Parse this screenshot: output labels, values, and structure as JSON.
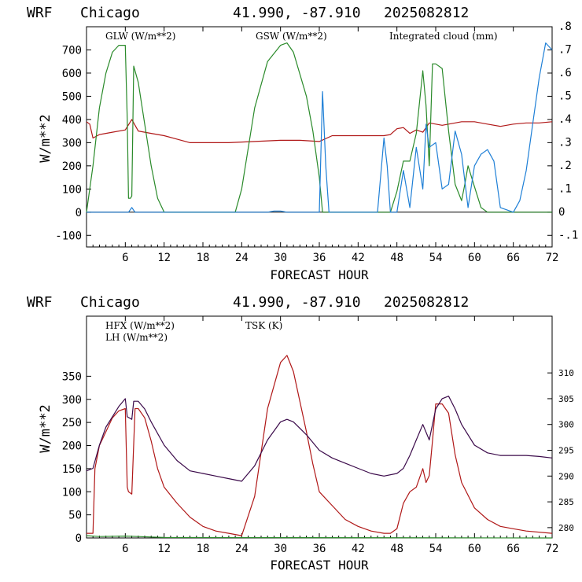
{
  "charts": [
    {
      "header": {
        "model": "WRF",
        "station": "Chicago",
        "coords": "41.990, -87.910",
        "run": "2025082812"
      },
      "xlabel": "FORECAST HOUR",
      "ylabel": "W/m**2",
      "legend": [
        {
          "label": "GLW (W/m**2)",
          "color": "#b01818"
        },
        {
          "label": "GSW (W/m**2)",
          "color": "#2a8a2a"
        },
        {
          "label": "Integrated cloud (mm)",
          "color": "#1e7fd6"
        }
      ]
    },
    {
      "header": {
        "model": "WRF",
        "station": "Chicago",
        "coords": "41.990, -87.910",
        "run": "2025082812"
      },
      "xlabel": "FORECAST HOUR",
      "ylabel": "W/m**2",
      "legend": [
        {
          "label": "HFX (W/m**2)",
          "color": "#b01818"
        },
        {
          "label": "LH  (W/m**2)",
          "color": "#2a8a2a"
        },
        {
          "label": "TSK (K)",
          "color": "#3b0a4a"
        }
      ]
    }
  ],
  "chart_data": [
    {
      "type": "line",
      "xlim": [
        0,
        72
      ],
      "xticks": [
        6,
        12,
        18,
        24,
        30,
        36,
        42,
        48,
        54,
        60,
        66,
        72
      ],
      "ylim": [
        -150,
        800
      ],
      "yticks": [
        -100,
        0,
        100,
        200,
        300,
        400,
        500,
        600,
        700
      ],
      "y2lim": [
        -0.15,
        0.8
      ],
      "y2ticks": [
        -0.1,
        0,
        0.1,
        0.2,
        0.3,
        0.4,
        0.5,
        0.6,
        0.7,
        0.8
      ],
      "y2ticklabels": [
        "-.1",
        "0",
        ".1",
        ".2",
        ".3",
        ".4",
        ".5",
        ".6",
        ".7",
        ".8"
      ],
      "series": [
        {
          "name": "GLW (W/m**2)",
          "axis": "left",
          "color": "#b01818",
          "x": [
            0,
            0.5,
            1,
            2,
            4,
            6,
            7,
            8,
            10,
            12,
            14,
            16,
            18,
            22,
            26,
            30,
            33,
            36,
            38,
            40,
            42,
            44,
            46,
            47,
            48,
            49,
            50,
            51,
            52,
            53,
            54,
            55,
            56,
            57,
            58,
            60,
            62,
            64,
            66,
            68,
            70,
            72
          ],
          "y": [
            390,
            380,
            320,
            335,
            345,
            355,
            400,
            350,
            340,
            330,
            315,
            300,
            300,
            300,
            305,
            310,
            310,
            305,
            330,
            330,
            330,
            330,
            330,
            335,
            360,
            365,
            340,
            355,
            345,
            385,
            380,
            375,
            380,
            385,
            390,
            390,
            380,
            370,
            380,
            385,
            385,
            390
          ]
        },
        {
          "name": "GSW (W/m**2)",
          "axis": "left",
          "color": "#2a8a2a",
          "x": [
            0,
            1,
            2,
            3,
            4,
            5,
            6,
            6.3,
            6.5,
            6.8,
            7,
            7.3,
            8,
            9,
            10,
            11,
            12,
            12.5,
            23,
            24,
            26,
            28,
            30,
            31,
            32,
            34,
            35,
            36,
            36.5,
            37,
            47,
            48,
            49,
            50,
            51,
            52,
            52.5,
            53,
            53.5,
            54,
            55,
            56,
            57,
            58,
            58.5,
            59,
            60,
            61,
            62,
            72
          ],
          "y": [
            0,
            200,
            450,
            600,
            690,
            720,
            720,
            400,
            60,
            60,
            70,
            630,
            560,
            380,
            200,
            60,
            0,
            0,
            0,
            100,
            450,
            650,
            720,
            730,
            690,
            500,
            350,
            150,
            0,
            0,
            0,
            90,
            220,
            220,
            340,
            610,
            460,
            200,
            640,
            640,
            620,
            350,
            120,
            50,
            120,
            200,
            110,
            20,
            0,
            0
          ]
        },
        {
          "name": "Integrated cloud (mm)",
          "axis": "right",
          "color": "#1e7fd6",
          "x": [
            0,
            6.5,
            7,
            7.5,
            28,
            29,
            30,
            31,
            36,
            36.5,
            37,
            37.5,
            45,
            46,
            46.5,
            47,
            48,
            49,
            50,
            51,
            52,
            52.5,
            53,
            54,
            55,
            56,
            57,
            58,
            59,
            60,
            61,
            62,
            63,
            64,
            66,
            67,
            68,
            69,
            70,
            71,
            72
          ],
          "y": [
            0,
            0,
            0.02,
            0,
            0,
            0.005,
            0.005,
            0,
            0,
            0.52,
            0.2,
            0,
            0,
            0.32,
            0.2,
            0,
            0,
            0.18,
            0.02,
            0.28,
            0.1,
            0.38,
            0.28,
            0.3,
            0.1,
            0.12,
            0.35,
            0.25,
            0.02,
            0.2,
            0.25,
            0.27,
            0.22,
            0.02,
            0,
            0.05,
            0.18,
            0.38,
            0.58,
            0.73,
            0.7
          ]
        }
      ]
    },
    {
      "type": "line",
      "xlim": [
        0,
        72
      ],
      "xticks": [
        6,
        12,
        18,
        24,
        30,
        36,
        42,
        48,
        54,
        60,
        66,
        72
      ],
      "ylim": [
        0,
        480
      ],
      "yticks": [
        0,
        50,
        100,
        150,
        200,
        250,
        300,
        350
      ],
      "y2lim": [
        278,
        321
      ],
      "y2ticks": [
        280,
        285,
        290,
        295,
        300,
        305,
        310
      ],
      "series": [
        {
          "name": "HFX (W/m**2)",
          "axis": "left",
          "color": "#b01818",
          "x": [
            0,
            1,
            1.3,
            2,
            3,
            4,
            5,
            6,
            6.3,
            6.5,
            7,
            7.5,
            8,
            9,
            10,
            11,
            12,
            14,
            16,
            18,
            20,
            22,
            24,
            26,
            28,
            30,
            31,
            32,
            34,
            35,
            36,
            38,
            40,
            42,
            44,
            46,
            47,
            48,
            49,
            50,
            51,
            52,
            52.5,
            53,
            53.5,
            54,
            55,
            56,
            57,
            58,
            60,
            62,
            64,
            66,
            68,
            72
          ],
          "y": [
            10,
            10,
            150,
            200,
            230,
            260,
            275,
            280,
            110,
            100,
            95,
            280,
            280,
            260,
            210,
            150,
            110,
            75,
            45,
            25,
            15,
            10,
            5,
            90,
            280,
            380,
            395,
            360,
            230,
            160,
            100,
            70,
            40,
            25,
            15,
            10,
            10,
            20,
            75,
            100,
            110,
            150,
            120,
            135,
            210,
            290,
            290,
            270,
            180,
            120,
            65,
            40,
            25,
            20,
            15,
            10
          ]
        },
        {
          "name": "LH  (W/m**2)",
          "axis": "left",
          "color": "#2a8a2a",
          "x": [
            0,
            2,
            6,
            8,
            12,
            72
          ],
          "y": [
            5,
            3,
            4,
            3,
            1,
            0
          ]
        },
        {
          "name": "TSK (K)",
          "axis": "right",
          "color": "#3b0a4a",
          "x": [
            0,
            1,
            2,
            3,
            4,
            5,
            6,
            6.3,
            7,
            7.3,
            8,
            9,
            10,
            12,
            14,
            16,
            18,
            20,
            22,
            24,
            26,
            28,
            30,
            31,
            32,
            34,
            36,
            38,
            40,
            42,
            44,
            46,
            48,
            49,
            50,
            51,
            52,
            53,
            54,
            55,
            56,
            57,
            58,
            60,
            62,
            64,
            66,
            68,
            70,
            72
          ],
          "y": [
            291,
            291.5,
            296,
            299.5,
            301.5,
            303.5,
            305,
            301.5,
            301,
            304.5,
            304.5,
            303,
            300.5,
            296,
            293,
            291,
            290.5,
            290,
            289.5,
            289,
            292,
            297,
            300.5,
            301,
            300.5,
            298,
            295,
            293.5,
            292.5,
            291.5,
            290.5,
            290,
            290.5,
            291.5,
            294,
            297,
            300,
            297,
            303,
            305,
            305.5,
            303,
            300,
            296,
            294.5,
            294,
            294,
            294,
            293.8,
            293.5
          ]
        }
      ]
    }
  ]
}
